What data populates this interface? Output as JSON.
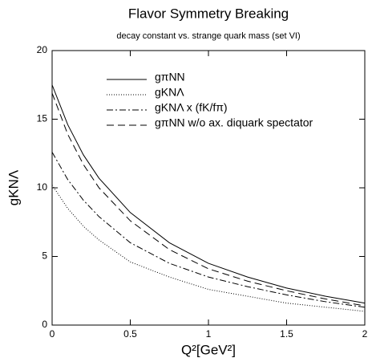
{
  "chart_data": {
    "type": "line",
    "title": "Flavor Symmetry Breaking",
    "subtitle": "decay constant vs. strange quark mass (set VI)",
    "xlabel": "Q²[GeV²]",
    "ylabel": "gKNΛ",
    "x": [
      0,
      0.1,
      0.2,
      0.3,
      0.5,
      0.75,
      1,
      1.25,
      1.5,
      1.75,
      2
    ],
    "series": [
      {
        "name": "gπNN",
        "color": "#000000",
        "dash": "none",
        "values": [
          17.5,
          14.6,
          12.4,
          10.7,
          8.2,
          6.0,
          4.5,
          3.5,
          2.7,
          2.1,
          1.6
        ]
      },
      {
        "name": "gKNΛ",
        "color": "#000000",
        "dash": "1,2",
        "values": [
          10.2,
          8.5,
          7.2,
          6.2,
          4.6,
          3.5,
          2.6,
          2.1,
          1.6,
          1.3,
          1.0
        ]
      },
      {
        "name": "gKNΛ x (fK/fπ)",
        "color": "#000000",
        "dash": "8,3,2,3",
        "values": [
          12.6,
          10.6,
          9.1,
          7.9,
          6.0,
          4.5,
          3.5,
          2.8,
          2.2,
          1.7,
          1.3
        ]
      },
      {
        "name": "gπNN w/o ax. diquark spectator",
        "color": "#000000",
        "dash": "9,5",
        "values": [
          16.9,
          13.9,
          11.7,
          10.0,
          7.6,
          5.5,
          4.1,
          3.2,
          2.5,
          1.9,
          1.4
        ]
      }
    ],
    "xlim": [
      0,
      2
    ],
    "xticks": [
      0,
      0.5,
      1,
      1.5,
      2
    ],
    "ylim": [
      0,
      20
    ],
    "yticks": [
      0,
      5,
      10,
      15,
      20
    ],
    "legend": "upper left"
  }
}
